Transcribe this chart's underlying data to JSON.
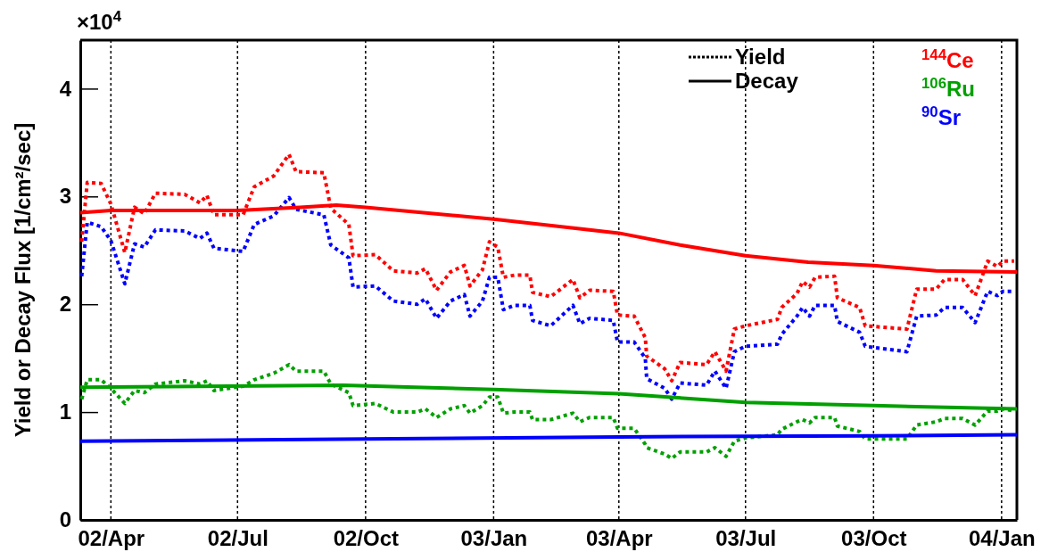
{
  "chart_data": {
    "type": "line",
    "ylabel": "Yield or Decay Flux [1/cm²/sec]",
    "annotations": [
      "×10$^{4}$",
      "Yield",
      "Decay"
    ],
    "x": [
      "2002-03-11",
      "2002-03-15",
      "2002-03-25",
      "2002-04-01",
      "2002-04-11",
      "2002-04-18",
      "2002-04-25",
      "2002-05-03",
      "2002-05-24",
      "2002-06-04",
      "2002-06-09",
      "2002-06-14",
      "2002-07-05",
      "2002-07-13",
      "2002-07-27",
      "2002-08-07",
      "2002-08-12",
      "2002-09-01",
      "2002-09-06",
      "2002-09-19",
      "2002-09-22",
      "2002-10-08",
      "2002-10-21",
      "2002-11-07",
      "2002-11-13",
      "2002-11-21",
      "2002-12-01",
      "2002-12-11",
      "2002-12-15",
      "2002-12-24",
      "2002-12-29",
      "2003-01-04",
      "2003-01-08",
      "2003-01-16",
      "2003-01-27",
      "2003-01-29",
      "2003-02-11",
      "2003-02-27",
      "2003-03-04",
      "2003-03-11",
      "2003-03-28",
      "2003-03-31",
      "2003-04-12",
      "2003-04-20",
      "2003-04-21",
      "2003-05-04",
      "2003-05-09",
      "2003-05-15",
      "2003-06-03",
      "2003-06-09",
      "2003-06-17",
      "2003-06-23",
      "2003-07-01",
      "2003-07-24",
      "2003-07-27",
      "2003-08-07",
      "2003-08-11",
      "2003-08-16",
      "2003-08-20",
      "2003-09-03",
      "2003-09-05",
      "2003-09-21",
      "2003-09-25",
      "2003-10-25",
      "2003-11-01",
      "2003-11-15",
      "2003-11-21",
      "2003-12-04",
      "2003-12-13",
      "2003-12-22",
      "2003-12-29",
      "2004-01-02",
      "2004-01-10"
    ],
    "series": [
      {
        "name": "$^{144}$Ce",
        "color": "#ff0000",
        "line_style": "dotted",
        "values": [
          2.58,
          3.13,
          3.12,
          2.93,
          2.48,
          2.9,
          2.84,
          3.03,
          3.02,
          2.94,
          3.01,
          2.83,
          2.83,
          3.09,
          3.19,
          3.39,
          3.23,
          3.22,
          2.89,
          2.74,
          2.45,
          2.46,
          2.31,
          2.29,
          2.33,
          2.13,
          2.3,
          2.36,
          2.17,
          2.32,
          2.58,
          2.53,
          2.25,
          2.27,
          2.27,
          2.11,
          2.07,
          2.23,
          2.06,
          2.13,
          2.12,
          1.9,
          1.89,
          1.69,
          1.52,
          1.4,
          1.29,
          1.46,
          1.44,
          1.56,
          1.38,
          1.77,
          1.8,
          1.86,
          1.97,
          2.1,
          2.21,
          2.16,
          2.25,
          2.26,
          2.06,
          1.97,
          1.8,
          1.77,
          2.14,
          2.14,
          2.23,
          2.23,
          2.08,
          2.4,
          2.35,
          2.4,
          2.4
        ]
      },
      {
        "name": "$^{106}$Ru",
        "color": "#00a000",
        "line_style": "dotted",
        "values": [
          1.12,
          1.3,
          1.3,
          1.22,
          1.08,
          1.2,
          1.18,
          1.26,
          1.29,
          1.26,
          1.29,
          1.2,
          1.24,
          1.3,
          1.36,
          1.44,
          1.38,
          1.38,
          1.26,
          1.18,
          1.06,
          1.08,
          1.0,
          1.0,
          1.03,
          0.95,
          1.03,
          1.06,
          0.99,
          1.06,
          1.14,
          1.14,
          0.99,
          1.0,
          1.0,
          0.93,
          0.93,
          0.99,
          0.91,
          0.95,
          0.95,
          0.85,
          0.85,
          0.7,
          0.67,
          0.61,
          0.57,
          0.63,
          0.63,
          0.67,
          0.59,
          0.73,
          0.76,
          0.79,
          0.84,
          0.91,
          0.93,
          0.9,
          0.95,
          0.95,
          0.87,
          0.82,
          0.75,
          0.75,
          0.88,
          0.91,
          0.94,
          0.94,
          0.88,
          1.01,
          1.01,
          1.03,
          1.01
        ]
      },
      {
        "name": "$^{90}$Sr",
        "color": "#0000ff",
        "line_style": "dotted",
        "values": [
          2.26,
          2.76,
          2.72,
          2.59,
          2.19,
          2.56,
          2.53,
          2.69,
          2.68,
          2.61,
          2.66,
          2.52,
          2.49,
          2.74,
          2.82,
          2.99,
          2.88,
          2.83,
          2.55,
          2.43,
          2.16,
          2.17,
          2.03,
          2.0,
          2.05,
          1.87,
          2.03,
          2.09,
          1.89,
          2.03,
          2.25,
          2.25,
          1.95,
          1.99,
          1.99,
          1.85,
          1.8,
          1.99,
          1.82,
          1.87,
          1.85,
          1.65,
          1.65,
          1.5,
          1.31,
          1.22,
          1.12,
          1.27,
          1.25,
          1.38,
          1.22,
          1.56,
          1.61,
          1.63,
          1.72,
          1.89,
          1.97,
          1.89,
          1.99,
          1.99,
          1.84,
          1.74,
          1.61,
          1.56,
          1.89,
          1.9,
          1.97,
          1.97,
          1.83,
          2.12,
          2.08,
          2.12,
          2.12
        ]
      },
      {
        "color": "#ff0000",
        "line_style": "solid",
        "x": [
          "2002-03-10",
          "2002-04-01",
          "2002-07-01",
          "2002-08-15",
          "2002-09-10",
          "2002-10-01",
          "2003-01-01",
          "2003-04-01",
          "2003-05-15",
          "2003-07-01",
          "2003-08-15",
          "2003-10-01",
          "2003-11-15",
          "2004-01-12"
        ],
        "values": [
          2.85,
          2.87,
          2.87,
          2.9,
          2.92,
          2.9,
          2.79,
          2.66,
          2.55,
          2.45,
          2.39,
          2.36,
          2.31,
          2.3
        ]
      },
      {
        "color": "#00a000",
        "line_style": "solid",
        "x": [
          "2002-03-10",
          "2002-09-15",
          "2003-01-01",
          "2003-04-01",
          "2003-07-01",
          "2003-10-01",
          "2004-01-12"
        ],
        "values": [
          1.23,
          1.25,
          1.21,
          1.17,
          1.09,
          1.06,
          1.03
        ]
      },
      {
        "color": "#0000ff",
        "line_style": "solid",
        "x": [
          "2002-03-10",
          "2002-10-01",
          "2003-04-01",
          "2003-10-01",
          "2004-01-12"
        ],
        "values": [
          0.73,
          0.75,
          0.77,
          0.78,
          0.79
        ]
      }
    ],
    "xlim": [
      "2002-03-10",
      "2004-01-12"
    ],
    "xticks": [
      {
        "value": "2002-04-01",
        "label": "02/Apr"
      },
      {
        "value": "2002-07-01",
        "label": "02/Jul"
      },
      {
        "value": "2002-10-01",
        "label": "02/Oct"
      },
      {
        "value": "2003-01-01",
        "label": "03/Jan"
      },
      {
        "value": "2003-04-01",
        "label": "03/Apr"
      },
      {
        "value": "2003-07-01",
        "label": "03/Jul"
      },
      {
        "value": "2003-10-01",
        "label": "03/Oct"
      },
      {
        "value": "2004-01-01",
        "label": "04/Jan"
      }
    ],
    "ylim": [
      0,
      4.45
    ],
    "yticks": [
      0,
      1,
      2,
      3,
      4
    ],
    "grid": "x",
    "legend": "top right",
    "marker": "none"
  }
}
